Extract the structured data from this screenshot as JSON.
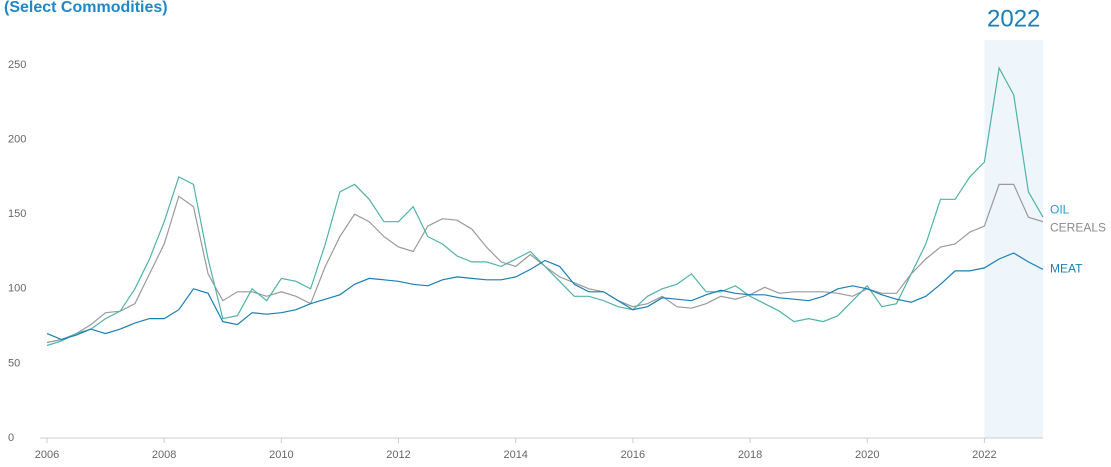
{
  "chart_data": {
    "type": "line",
    "title": "(Select Commodities)",
    "annotation": "2022",
    "highlight": [
      2022,
      2023
    ],
    "xlim": [
      2006,
      2023
    ],
    "xticks": [
      2006,
      2008,
      2010,
      2012,
      2014,
      2016,
      2018,
      2020,
      2022
    ],
    "ylim": [
      0,
      250
    ],
    "yticks": [
      0,
      50,
      100,
      150,
      200,
      250
    ],
    "grid": false,
    "x": [
      2006,
      2006.25,
      2006.5,
      2006.75,
      2007,
      2007.25,
      2007.5,
      2007.75,
      2008,
      2008.25,
      2008.5,
      2008.75,
      2009,
      2009.25,
      2009.5,
      2009.75,
      2010,
      2010.25,
      2010.5,
      2010.75,
      2011,
      2011.25,
      2011.5,
      2011.75,
      2012,
      2012.25,
      2012.5,
      2012.75,
      2013,
      2013.25,
      2013.5,
      2013.75,
      2014,
      2014.25,
      2014.5,
      2014.75,
      2015,
      2015.25,
      2015.5,
      2015.75,
      2016,
      2016.25,
      2016.5,
      2016.75,
      2017,
      2017.25,
      2017.5,
      2017.75,
      2018,
      2018.25,
      2018.5,
      2018.75,
      2019,
      2019.25,
      2019.5,
      2019.75,
      2020,
      2020.25,
      2020.5,
      2020.75,
      2021,
      2021.25,
      2021.5,
      2021.75,
      2022,
      2022.25,
      2022.5,
      2022.75,
      2023
    ],
    "series": [
      {
        "name": "CEREALS",
        "color": "#9a9a9a",
        "label_color": "#8a8a8a",
        "values": [
          64,
          66,
          70,
          76,
          84,
          85,
          90,
          110,
          130,
          162,
          155,
          110,
          92,
          98,
          98,
          95,
          98,
          95,
          90,
          115,
          135,
          150,
          145,
          135,
          128,
          125,
          142,
          147,
          146,
          140,
          128,
          118,
          115,
          123,
          115,
          108,
          104,
          100,
          98,
          92,
          88,
          90,
          95,
          88,
          87,
          90,
          95,
          93,
          96,
          101,
          97,
          98,
          98,
          98,
          97,
          95,
          100,
          97,
          97,
          110,
          120,
          128,
          130,
          138,
          142,
          170,
          170,
          148,
          145
        ]
      },
      {
        "name": "OIL",
        "color": "#4fb3a9",
        "label_color": "#1e9fd0",
        "values": [
          62,
          65,
          70,
          73,
          80,
          85,
          100,
          120,
          145,
          175,
          170,
          120,
          80,
          82,
          100,
          92,
          107,
          105,
          100,
          130,
          165,
          170,
          160,
          145,
          145,
          155,
          135,
          130,
          122,
          118,
          118,
          115,
          120,
          125,
          115,
          105,
          95,
          95,
          92,
          88,
          86,
          95,
          100,
          103,
          110,
          98,
          98,
          102,
          95,
          90,
          85,
          78,
          80,
          78,
          82,
          92,
          102,
          88,
          90,
          110,
          130,
          160,
          160,
          175,
          185,
          248,
          230,
          165,
          148
        ]
      },
      {
        "name": "MEAT",
        "color": "#1a7fb5",
        "label_color": "#1a7fb5",
        "values": [
          70,
          66,
          69,
          73,
          70,
          73,
          77,
          80,
          80,
          86,
          100,
          97,
          78,
          76,
          84,
          83,
          84,
          86,
          90,
          93,
          96,
          103,
          107,
          106,
          105,
          103,
          102,
          106,
          108,
          107,
          106,
          106,
          108,
          113,
          119,
          115,
          103,
          98,
          98,
          92,
          86,
          88,
          94,
          93,
          92,
          96,
          99,
          97,
          96,
          96,
          94,
          93,
          92,
          95,
          100,
          102,
          100,
          96,
          93,
          91,
          95,
          103,
          112,
          112,
          114,
          120,
          124,
          118,
          113
        ]
      }
    ]
  }
}
